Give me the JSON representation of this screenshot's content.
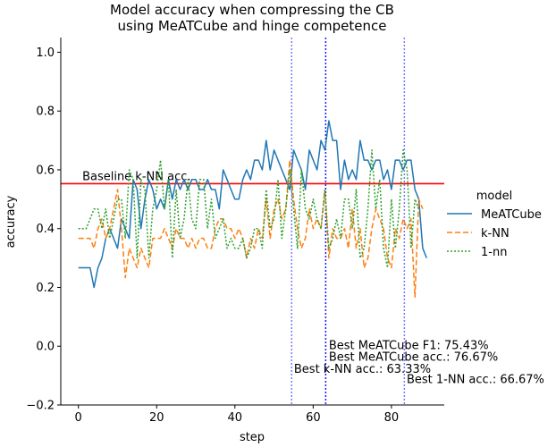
{
  "chart_data": {
    "type": "line",
    "title": "Model accuracy when compressing the CB\nusing MeATCube and hinge competence",
    "xlabel": "step",
    "ylabel": "accuracy",
    "xlim": [
      -4.5,
      93.5
    ],
    "ylim": [
      -0.2,
      1.05
    ],
    "xticks": [
      0,
      20,
      40,
      60,
      80
    ],
    "yticks": [
      -0.2,
      0.0,
      0.2,
      0.4,
      0.6,
      0.8,
      1.0
    ],
    "grid": false,
    "legend": {
      "title": "model",
      "placement": "right"
    },
    "series": [
      {
        "name": "MeATCube",
        "color": "#1f77b4",
        "dash": "solid",
        "x": [
          0,
          1,
          2,
          3,
          4,
          5,
          6,
          7,
          8,
          9,
          10,
          11,
          12,
          13,
          14,
          15,
          16,
          17,
          18,
          19,
          20,
          21,
          22,
          23,
          24,
          25,
          26,
          27,
          28,
          29,
          30,
          31,
          32,
          33,
          34,
          35,
          36,
          37,
          38,
          39,
          40,
          41,
          42,
          43,
          44,
          45,
          46,
          47,
          48,
          49,
          50,
          51,
          52,
          53,
          54,
          55,
          56,
          57,
          58,
          59,
          60,
          61,
          62,
          63,
          64,
          65,
          66,
          67,
          68,
          69,
          70,
          71,
          72,
          73,
          74,
          75,
          76,
          77,
          78,
          79,
          80,
          81,
          82,
          83,
          84,
          85,
          86,
          87,
          88,
          89
        ],
        "y": [
          0.267,
          0.267,
          0.267,
          0.267,
          0.2,
          0.267,
          0.3,
          0.367,
          0.4,
          0.367,
          0.333,
          0.433,
          0.4,
          0.367,
          0.567,
          0.533,
          0.4,
          0.5,
          0.567,
          0.533,
          0.467,
          0.5,
          0.467,
          0.567,
          0.5,
          0.567,
          0.533,
          0.567,
          0.533,
          0.567,
          0.567,
          0.533,
          0.533,
          0.567,
          0.533,
          0.533,
          0.467,
          0.6,
          0.567,
          0.533,
          0.5,
          0.5,
          0.567,
          0.6,
          0.567,
          0.633,
          0.633,
          0.6,
          0.7,
          0.6,
          0.667,
          0.633,
          0.6,
          0.567,
          0.533,
          0.667,
          0.633,
          0.6,
          0.533,
          0.667,
          0.633,
          0.6,
          0.7,
          0.667,
          0.767,
          0.7,
          0.7,
          0.533,
          0.633,
          0.567,
          0.6,
          0.567,
          0.7,
          0.633,
          0.633,
          0.6,
          0.633,
          0.633,
          0.567,
          0.6,
          0.533,
          0.633,
          0.633,
          0.6,
          0.633,
          0.633,
          0.533,
          0.5,
          0.333,
          0.3
        ]
      },
      {
        "name": "k-NN",
        "color": "#ff7f0e",
        "dash": "dashed",
        "x": [
          0,
          1,
          2,
          3,
          4,
          5,
          6,
          7,
          8,
          9,
          10,
          11,
          12,
          13,
          14,
          15,
          16,
          17,
          18,
          19,
          20,
          21,
          22,
          23,
          24,
          25,
          26,
          27,
          28,
          29,
          30,
          31,
          32,
          33,
          34,
          35,
          36,
          37,
          38,
          39,
          40,
          41,
          42,
          43,
          44,
          45,
          46,
          47,
          48,
          49,
          50,
          51,
          52,
          53,
          54,
          55,
          56,
          57,
          58,
          59,
          60,
          61,
          62,
          63,
          64,
          65,
          66,
          67,
          68,
          69,
          70,
          71,
          72,
          73,
          74,
          75,
          76,
          77,
          78,
          79,
          80,
          81,
          82,
          83,
          84,
          85,
          86,
          87,
          88,
          89
        ],
        "y": [
          0.367,
          0.367,
          0.367,
          0.367,
          0.333,
          0.4,
          0.433,
          0.367,
          0.4,
          0.467,
          0.533,
          0.4,
          0.233,
          0.333,
          0.3,
          0.267,
          0.333,
          0.3,
          0.267,
          0.367,
          0.367,
          0.367,
          0.4,
          0.367,
          0.333,
          0.4,
          0.367,
          0.367,
          0.333,
          0.367,
          0.333,
          0.367,
          0.367,
          0.333,
          0.333,
          0.4,
          0.433,
          0.433,
          0.4,
          0.4,
          0.367,
          0.4,
          0.367,
          0.3,
          0.367,
          0.333,
          0.4,
          0.367,
          0.5,
          0.367,
          0.467,
          0.5,
          0.433,
          0.467,
          0.633,
          0.5,
          0.4,
          0.333,
          0.367,
          0.467,
          0.4,
          0.433,
          0.4,
          0.533,
          0.3,
          0.4,
          0.367,
          0.367,
          0.4,
          0.333,
          0.467,
          0.333,
          0.4,
          0.267,
          0.3,
          0.4,
          0.467,
          0.433,
          0.4,
          0.3,
          0.267,
          0.4,
          0.367,
          0.433,
          0.4,
          0.433,
          0.167,
          0.5,
          0.467,
          null
        ]
      },
      {
        "name": "1-nn",
        "color": "#2ca02c",
        "dash": "dotted",
        "x": [
          0,
          1,
          2,
          3,
          4,
          5,
          6,
          7,
          8,
          9,
          10,
          11,
          12,
          13,
          14,
          15,
          16,
          17,
          18,
          19,
          20,
          21,
          22,
          23,
          24,
          25,
          26,
          27,
          28,
          29,
          30,
          31,
          32,
          33,
          34,
          35,
          36,
          37,
          38,
          39,
          40,
          41,
          42,
          43,
          44,
          45,
          46,
          47,
          48,
          49,
          50,
          51,
          52,
          53,
          54,
          55,
          56,
          57,
          58,
          59,
          60,
          61,
          62,
          63,
          64,
          65,
          66,
          67,
          68,
          69,
          70,
          71,
          72,
          73,
          74,
          75,
          76,
          77,
          78,
          79,
          80,
          81,
          82,
          83,
          84,
          85,
          86,
          87,
          88,
          89
        ],
        "y": [
          0.4,
          0.4,
          0.4,
          0.433,
          0.467,
          0.467,
          0.4,
          0.467,
          0.367,
          0.433,
          0.5,
          0.5,
          0.367,
          0.6,
          0.567,
          0.3,
          0.567,
          0.533,
          0.3,
          0.467,
          0.533,
          0.633,
          0.467,
          0.567,
          0.3,
          0.533,
          0.367,
          0.433,
          0.567,
          0.433,
          0.4,
          0.567,
          0.567,
          0.4,
          0.5,
          0.367,
          0.4,
          0.433,
          0.333,
          0.367,
          0.333,
          0.333,
          0.367,
          0.3,
          0.333,
          0.4,
          0.4,
          0.333,
          0.533,
          0.4,
          0.433,
          0.567,
          0.367,
          0.467,
          0.6,
          0.467,
          0.333,
          0.6,
          0.467,
          0.433,
          0.5,
          0.433,
          0.4,
          0.533,
          0.333,
          0.367,
          0.433,
          0.367,
          0.5,
          0.5,
          0.4,
          0.533,
          0.3,
          0.333,
          0.467,
          0.667,
          0.467,
          0.567,
          0.333,
          0.267,
          0.5,
          0.333,
          0.467,
          0.667,
          0.6,
          0.333,
          0.5,
          0.467,
          null,
          null
        ]
      }
    ],
    "hlines": [
      {
        "y": 0.553,
        "color": "#ff0000",
        "label": "Baseline k-NN acc."
      }
    ],
    "vlines": [
      {
        "x": 54.5,
        "color": "#7b7bff",
        "style": "dotted"
      },
      {
        "x": 63.2,
        "color": "#1a1aff",
        "style": "dotted"
      },
      {
        "x": 83.3,
        "color": "#7b7bff",
        "style": "dotted"
      }
    ],
    "annotations": [
      {
        "text": "Best MeATCube F1: 75.43%",
        "x": 64,
        "y": -0.01
      },
      {
        "text": "Best MeATCube acc.: 76.67%",
        "x": 64,
        "y": -0.05
      },
      {
        "text": "Best k-NN acc.: 63.33%",
        "x": 55.1,
        "y": -0.09
      },
      {
        "text": "Best 1-NN acc.: 66.67%",
        "x": 83.9,
        "y": -0.125
      }
    ]
  }
}
